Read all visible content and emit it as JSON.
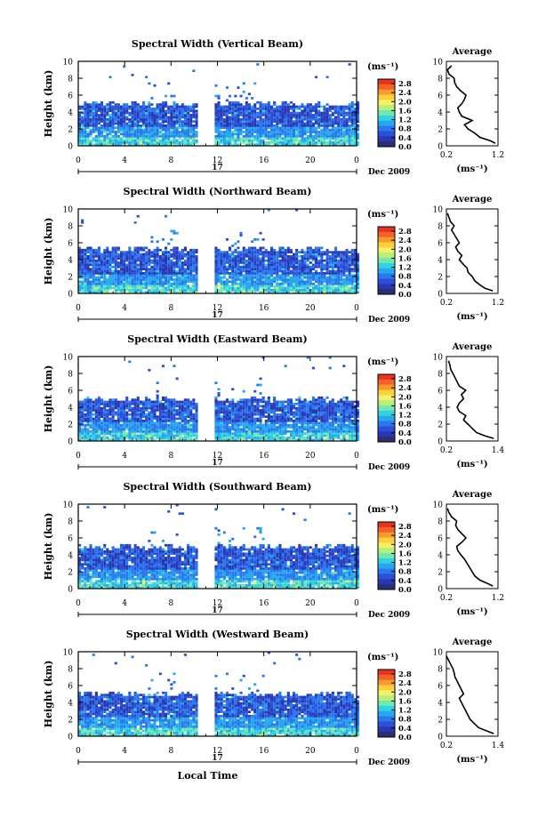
{
  "figure": {
    "xlabel_bottom": "Local Time",
    "date_label": "Dec 2009",
    "day_label": "17",
    "colorbar_unit": "(ms⁻¹)",
    "colorbar_ticks": [
      "2.8",
      "2.4",
      "2.0",
      "1.6",
      "1.2",
      "0.8",
      "0.4",
      "0.0"
    ],
    "colorbar_colors": [
      "#e8331f",
      "#f0622a",
      "#f79a2e",
      "#fbd03a",
      "#f4f06a",
      "#b8ee7a",
      "#72e8b0",
      "#2fd4e0",
      "#29a6f0",
      "#2a78ee",
      "#2c4fd8",
      "#2b37b0",
      "#2a2f74"
    ],
    "profile_title": "Average",
    "profile_xlabel": "(ms⁻¹)"
  },
  "chart_data": [
    {
      "type": "heatmap",
      "title": "Spectral Width (Vertical Beam)",
      "ylabel": "Height (km)",
      "x_ticks": [
        "0",
        "4",
        "8",
        "12",
        "16",
        "20",
        "0"
      ],
      "y_ticks": [
        "0",
        "2",
        "4",
        "6",
        "8",
        "10"
      ],
      "xlim": [
        0,
        24
      ],
      "ylim": [
        0,
        10
      ],
      "data_gap_hours": [
        10.3,
        11.7
      ],
      "mean_layer_top_km": 5.0,
      "profile": {
        "xlim": [
          0.2,
          1.2
        ],
        "x_ticks": [
          "0.2",
          "1.2"
        ],
        "y_ticks": [
          "0",
          "2",
          "4",
          "6",
          "8",
          "10"
        ],
        "height_km": [
          0.3,
          0.6,
          1.0,
          1.5,
          2.0,
          2.5,
          3.0,
          3.5,
          4.0,
          4.5,
          5.0,
          5.5,
          6.0,
          6.5,
          7.0,
          7.5,
          8.0,
          8.5,
          9.0,
          9.5
        ],
        "width_ms": [
          1.15,
          1.05,
          0.85,
          0.75,
          0.62,
          0.55,
          0.7,
          0.5,
          0.45,
          0.42,
          0.5,
          0.55,
          0.58,
          0.48,
          0.4,
          0.36,
          0.35,
          0.25,
          0.22,
          0.3
        ]
      }
    },
    {
      "type": "heatmap",
      "title": "Spectral Width (Northward Beam)",
      "ylabel": "Height (km)",
      "x_ticks": [
        "0",
        "4",
        "8",
        "12",
        "16",
        "20",
        "0"
      ],
      "y_ticks": [
        "0",
        "2",
        "4",
        "6",
        "8",
        "10"
      ],
      "xlim": [
        0,
        24
      ],
      "ylim": [
        0,
        10
      ],
      "data_gap_hours": [
        10.3,
        11.7
      ],
      "mean_layer_top_km": 5.3,
      "profile": {
        "xlim": [
          0.2,
          1.2
        ],
        "x_ticks": [
          "0.2",
          "1.2"
        ],
        "y_ticks": [
          "0",
          "2",
          "4",
          "6",
          "8",
          "10"
        ],
        "height_km": [
          0.3,
          0.6,
          1.0,
          1.5,
          2.0,
          2.5,
          3.0,
          3.5,
          4.0,
          4.5,
          5.0,
          5.5,
          6.0,
          6.5,
          7.0,
          7.5,
          8.0,
          8.5,
          9.0,
          9.5
        ],
        "width_ms": [
          1.1,
          0.95,
          0.85,
          0.75,
          0.7,
          0.62,
          0.6,
          0.52,
          0.45,
          0.5,
          0.42,
          0.38,
          0.45,
          0.4,
          0.35,
          0.3,
          0.35,
          0.28,
          0.25,
          0.22
        ]
      }
    },
    {
      "type": "heatmap",
      "title": "Spectral Width (Eastward Beam)",
      "ylabel": "Height (km)",
      "x_ticks": [
        "0",
        "4",
        "8",
        "12",
        "16",
        "20",
        "0"
      ],
      "y_ticks": [
        "0",
        "2",
        "4",
        "6",
        "8",
        "10"
      ],
      "xlim": [
        0,
        24
      ],
      "ylim": [
        0,
        10
      ],
      "data_gap_hours": [
        10.3,
        11.7
      ],
      "mean_layer_top_km": 5.0,
      "profile": {
        "xlim": [
          0.2,
          1.4
        ],
        "x_ticks": [
          "0.2",
          "1.4"
        ],
        "y_ticks": [
          "0",
          "2",
          "4",
          "6",
          "8",
          "10"
        ],
        "height_km": [
          0.3,
          0.6,
          1.0,
          1.5,
          2.0,
          2.5,
          3.0,
          3.5,
          4.0,
          4.5,
          5.0,
          5.5,
          6.0,
          6.5,
          7.0,
          7.5,
          8.0,
          8.5,
          9.0,
          9.5
        ],
        "width_ms": [
          1.3,
          1.1,
          0.9,
          0.8,
          0.7,
          0.6,
          0.65,
          0.5,
          0.45,
          0.5,
          0.6,
          0.55,
          0.65,
          0.5,
          0.45,
          0.4,
          0.35,
          0.3,
          0.28,
          0.25
        ]
      }
    },
    {
      "type": "heatmap",
      "title": "Spectral Width (Southward Beam)",
      "ylabel": "Height (km)",
      "x_ticks": [
        "0",
        "4",
        "8",
        "12",
        "16",
        "20",
        "0"
      ],
      "y_ticks": [
        "0",
        "2",
        "4",
        "6",
        "8",
        "10"
      ],
      "xlim": [
        0,
        24
      ],
      "ylim": [
        0,
        10
      ],
      "data_gap_hours": [
        10.3,
        11.7
      ],
      "mean_layer_top_km": 5.0,
      "profile": {
        "xlim": [
          0.2,
          1.2
        ],
        "x_ticks": [
          "0.2",
          "1.2"
        ],
        "y_ticks": [
          "0",
          "2",
          "4",
          "6",
          "8",
          "10"
        ],
        "height_km": [
          0.3,
          0.6,
          1.0,
          1.5,
          2.0,
          2.5,
          3.0,
          3.5,
          4.0,
          4.5,
          5.0,
          5.5,
          6.0,
          6.5,
          7.0,
          7.5,
          8.0,
          8.5,
          9.0,
          9.5
        ],
        "width_ms": [
          1.1,
          1.0,
          0.85,
          0.75,
          0.7,
          0.65,
          0.6,
          0.55,
          0.48,
          0.42,
          0.4,
          0.5,
          0.58,
          0.5,
          0.42,
          0.38,
          0.4,
          0.3,
          0.25,
          0.22
        ]
      }
    },
    {
      "type": "heatmap",
      "title": "Spectral Width (Westward Beam)",
      "ylabel": "Height (km)",
      "x_ticks": [
        "0",
        "4",
        "8",
        "12",
        "16",
        "20",
        "0"
      ],
      "y_ticks": [
        "0",
        "2",
        "4",
        "6",
        "8",
        "10"
      ],
      "xlim": [
        0,
        24
      ],
      "ylim": [
        0,
        10
      ],
      "data_gap_hours": [
        10.3,
        11.7
      ],
      "mean_layer_top_km": 5.0,
      "profile": {
        "xlim": [
          0.2,
          1.4
        ],
        "x_ticks": [
          "0.2",
          "1.4"
        ],
        "y_ticks": [
          "0",
          "2",
          "4",
          "6",
          "8",
          "10"
        ],
        "height_km": [
          0.3,
          0.6,
          1.0,
          1.5,
          2.0,
          2.5,
          3.0,
          3.5,
          4.0,
          4.5,
          5.0,
          5.5,
          6.0,
          6.5,
          7.0,
          7.5,
          8.0,
          8.5,
          9.0,
          9.5
        ],
        "width_ms": [
          1.3,
          1.15,
          0.95,
          0.85,
          0.75,
          0.7,
          0.65,
          0.6,
          0.55,
          0.5,
          0.6,
          0.55,
          0.5,
          0.45,
          0.4,
          0.38,
          0.35,
          0.3,
          0.25,
          0.2
        ]
      }
    }
  ]
}
